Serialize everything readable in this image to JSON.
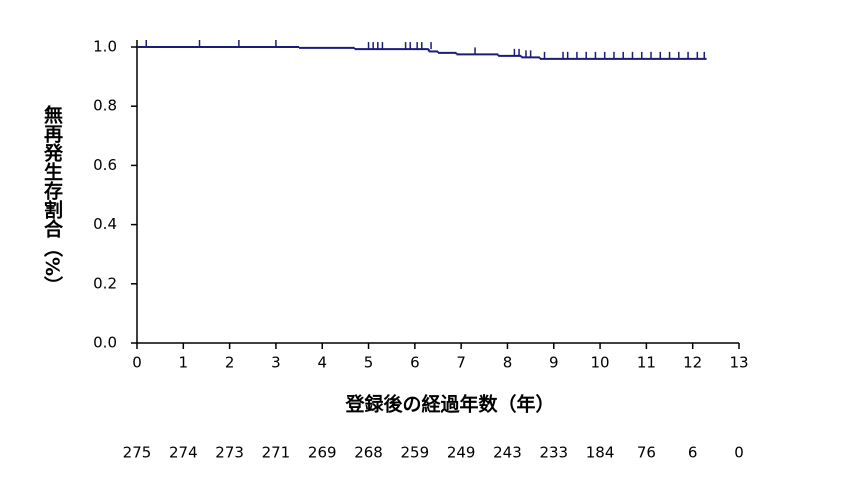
{
  "chart_data": {
    "type": "step",
    "ylabel": "無再発生存割合（%）",
    "xlabel": "登録後の経過年数（年）",
    "color": "#1b1b78",
    "x": [
      0,
      3.5,
      4.7,
      6.3,
      6.5,
      6.9,
      7.8,
      8.3,
      8.7,
      12.3
    ],
    "values": [
      1,
      0.997,
      0.993,
      0.985,
      0.98,
      0.975,
      0.97,
      0.965,
      0.96,
      0.96
    ],
    "censored": {
      "x": [
        0.2,
        1.35,
        2.2,
        3.0,
        5.0,
        5.1,
        5.2,
        5.3,
        5.8,
        5.9,
        6.05,
        6.15,
        6.35,
        7.3,
        8.15,
        8.25,
        8.4,
        8.5,
        8.8,
        9.2,
        9.3,
        9.5,
        9.7,
        9.9,
        10.1,
        10.3,
        10.5,
        10.7,
        10.9,
        11.1,
        11.3,
        11.5,
        11.7,
        11.9,
        12.1,
        12.25
      ],
      "values": [
        1,
        1,
        1,
        1,
        0.993,
        0.993,
        0.993,
        0.993,
        0.993,
        0.993,
        0.993,
        0.993,
        0.993,
        0.975,
        0.97,
        0.97,
        0.965,
        0.965,
        0.96,
        0.96,
        0.96,
        0.96,
        0.96,
        0.96,
        0.96,
        0.96,
        0.96,
        0.96,
        0.96,
        0.96,
        0.96,
        0.96,
        0.96,
        0.96,
        0.96,
        0.96
      ]
    },
    "xlim": [
      0,
      13
    ],
    "xticks": [
      0,
      1,
      2,
      3,
      4,
      5,
      6,
      7,
      8,
      9,
      10,
      11,
      12,
      13
    ],
    "ylim": [
      0,
      1
    ],
    "yticks": [
      {
        "value": 0,
        "label": "0.0"
      },
      0.2,
      0.4,
      0.6,
      0.8,
      {
        "value": 1,
        "label": "1.0"
      }
    ],
    "at_risk": {
      "x": [
        0,
        1,
        2,
        3,
        4,
        5,
        6,
        7,
        8,
        9,
        10,
        11,
        12,
        13
      ],
      "values": [
        275,
        274,
        273,
        271,
        269,
        268,
        259,
        249,
        243,
        233,
        184,
        76,
        6,
        0
      ]
    }
  }
}
